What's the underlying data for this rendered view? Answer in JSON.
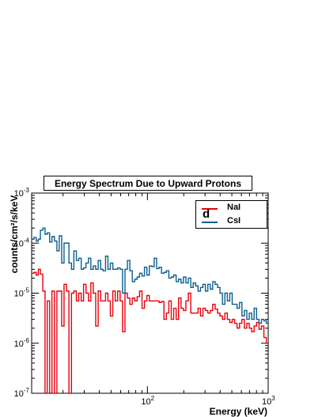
{
  "chart_data": {
    "type": "line",
    "title": "Energy Spectrum Due to Upward Protons",
    "panel_label": "d",
    "xlabel": "Energy (keV)",
    "ylabel": "counts/cm²/s/keV",
    "xscale": "log",
    "yscale": "log",
    "xlim": [
      11,
      1000
    ],
    "ylim": [
      1e-07,
      0.001
    ],
    "x_ticks": [
      {
        "value": 100,
        "base": "10",
        "exp": "2"
      },
      {
        "value": 1000,
        "base": "10",
        "exp": "3"
      }
    ],
    "y_ticks": [
      {
        "value": 1e-07,
        "base": "10",
        "exp": "-7"
      },
      {
        "value": 1e-06,
        "base": "10",
        "exp": "-6"
      },
      {
        "value": 1e-05,
        "base": "10",
        "exp": "-5"
      },
      {
        "value": 0.0001,
        "base": "10",
        "exp": "-4"
      },
      {
        "value": 0.001,
        "base": "10",
        "exp": "-3"
      }
    ],
    "grid": false,
    "legend_position": "top-right",
    "series": [
      {
        "name": "NaI",
        "color": "#e8000b",
        "x": [
          11,
          11.5,
          12,
          12.5,
          13,
          13.6,
          14.2,
          14.8,
          15.5,
          16.2,
          17,
          17.8,
          18.6,
          19.5,
          20.4,
          21.4,
          22.4,
          23.5,
          24.6,
          25.8,
          27,
          28.3,
          29.6,
          31,
          32.5,
          34,
          35.6,
          37.3,
          39.1,
          41,
          42.9,
          45,
          47.1,
          49.3,
          51.7,
          54.1,
          56.7,
          59.4,
          62.2,
          65.2,
          68.3,
          71.5,
          74.9,
          78.5,
          82.2,
          86.1,
          90.2,
          94.5,
          99,
          103.7,
          108.6,
          113.8,
          119.2,
          124.9,
          130.8,
          137,
          143.6,
          150.4,
          157.5,
          165,
          172.9,
          181.1,
          189.7,
          198.7,
          208.2,
          218.1,
          228.5,
          239.3,
          250.7,
          262.6,
          275.1,
          288.2,
          301.9,
          316.3,
          331.3,
          347.1,
          363.6,
          380.9,
          399,
          418,
          437.9,
          458.7,
          480.5,
          503.4,
          527.3,
          552.4,
          578.7,
          606.2,
          635,
          665.3,
          696.9,
          730.1,
          764.8,
          801.2,
          839.3,
          879.3,
          921.1,
          964.9
        ],
        "values": [
          2.5e-05,
          2.6e-05,
          2.3e-05,
          3e-05,
          2.4e-05,
          1.1e-05,
          1e-07,
          7e-06,
          1e-07,
          1.1e-05,
          1e-07,
          1.1e-05,
          1.1e-05,
          2.2e-06,
          1.5e-05,
          1.1e-05,
          1e-07,
          1e-05,
          1.1e-05,
          7e-06,
          1e-05,
          7e-06,
          1.5e-05,
          1e-05,
          7e-06,
          1.6e-05,
          1e-05,
          2.2e-06,
          1.1e-05,
          7e-06,
          7e-06,
          1e-05,
          7e-06,
          3.5e-06,
          1.1e-05,
          7e-06,
          1.1e-05,
          7e-06,
          1.7e-06,
          1e-05,
          8e-06,
          6e-06,
          8e-06,
          7e-06,
          8.5e-06,
          1.1e-05,
          5e-06,
          7e-06,
          9e-06,
          7e-06,
          7e-06,
          7e-06,
          7e-06,
          6.5e-06,
          6.8e-06,
          3e-06,
          4e-06,
          7e-06,
          3e-06,
          5e-06,
          3e-06,
          8e-06,
          5e-06,
          4.5e-06,
          7e-06,
          1e-05,
          4e-06,
          4e-06,
          4e-06,
          5e-06,
          3.5e-06,
          5e-06,
          4.5e-06,
          4e-06,
          4.5e-06,
          6e-06,
          4.8e-06,
          4e-06,
          3.5e-06,
          3e-06,
          4e-06,
          3e-06,
          2.6e-06,
          3e-06,
          2.5e-06,
          2e-06,
          2.5e-06,
          3e-06,
          2e-06,
          2.5e-06,
          2e-06,
          1.7e-06,
          2.2e-06,
          2.6e-06,
          1.9e-06,
          2.2e-06,
          1.3e-06,
          1e-06
        ]
      },
      {
        "name": "CsI",
        "color": "#0a5f8f",
        "x": [
          11,
          11.5,
          12,
          12.5,
          13,
          13.6,
          14.2,
          14.8,
          15.5,
          16.2,
          17,
          17.8,
          18.6,
          19.5,
          20.4,
          21.4,
          22.4,
          23.5,
          24.6,
          25.8,
          27,
          28.3,
          29.6,
          31,
          32.5,
          34,
          35.6,
          37.3,
          39.1,
          41,
          42.9,
          45,
          47.1,
          49.3,
          51.7,
          54.1,
          56.7,
          59.4,
          62.2,
          65.2,
          68.3,
          71.5,
          74.9,
          78.5,
          82.2,
          86.1,
          90.2,
          94.5,
          99,
          103.7,
          108.6,
          113.8,
          119.2,
          124.9,
          130.8,
          137,
          143.6,
          150.4,
          157.5,
          165,
          172.9,
          181.1,
          189.7,
          198.7,
          208.2,
          218.1,
          228.5,
          239.3,
          250.7,
          262.6,
          275.1,
          288.2,
          301.9,
          316.3,
          331.3,
          347.1,
          363.6,
          380.9,
          399,
          418,
          437.9,
          458.7,
          480.5,
          503.4,
          527.3,
          552.4,
          578.7,
          606.2,
          635,
          665.3,
          696.9,
          730.1,
          764.8,
          801.2,
          839.3,
          879.3,
          921.1,
          964.9
        ],
        "values": [
          0.00012,
          0.00013,
          0.00011,
          0.00012,
          0.00018,
          0.0002,
          0.00015,
          0.00016,
          0.000105,
          0.000135,
          0.00011,
          7e-05,
          0.00014,
          4e-05,
          0.0001,
          0.0001,
          4e-05,
          3e-05,
          7e-05,
          4.5e-05,
          5e-05,
          3e-05,
          3.2e-05,
          4e-05,
          5e-05,
          3e-05,
          3.5e-05,
          3e-05,
          4.5e-05,
          3e-05,
          2.8e-05,
          5.5e-05,
          3e-05,
          4e-05,
          3e-05,
          3e-05,
          3.2e-05,
          3e-05,
          1e-05,
          3e-05,
          4.5e-05,
          2.8e-05,
          1.7e-05,
          1.9e-05,
          2.1e-05,
          2.5e-05,
          2.2e-05,
          3.3e-05,
          2.3e-05,
          3.5e-05,
          3.4e-05,
          5e-05,
          3.1e-05,
          3.3e-05,
          2.5e-05,
          2.6e-05,
          2.8e-05,
          2e-05,
          2.1e-05,
          2.3e-05,
          1.7e-05,
          1.9e-05,
          1.6e-05,
          2.1e-05,
          1.6e-05,
          2e-05,
          1.3e-05,
          1.6e-05,
          1.4e-05,
          1.1e-05,
          1.3e-05,
          1.5e-05,
          1.1e-05,
          1.5e-05,
          1.2e-05,
          1.7e-05,
          1.5e-05,
          1.3e-05,
          1e-05,
          6e-06,
          1e-05,
          7e-06,
          1e-05,
          6e-06,
          6e-06,
          5e-06,
          6.5e-06,
          3.5e-06,
          4.5e-06,
          3e-06,
          4e-06,
          3e-06,
          5e-06,
          3e-06,
          2.5e-06,
          3e-06,
          2.8e-06,
          2.5e-06
        ]
      }
    ]
  }
}
